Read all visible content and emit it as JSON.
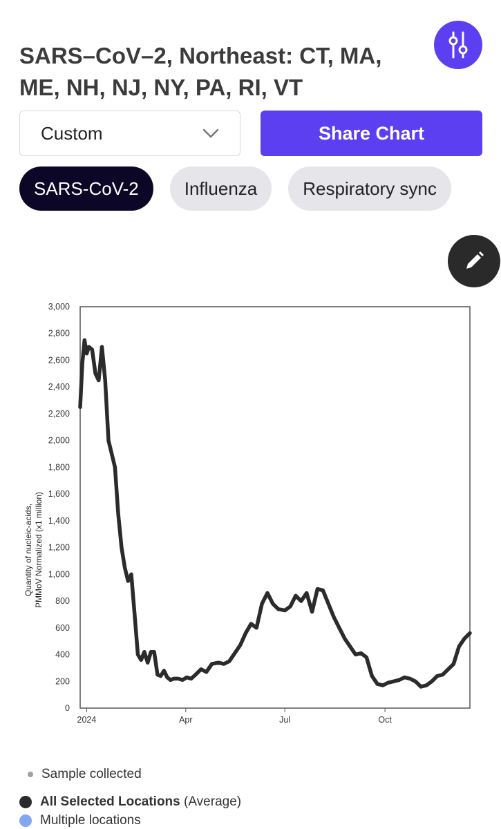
{
  "title": "SARS–CoV–2, Northeast: CT, MA, ME, NH, NJ, NY, PA, RI, VT",
  "controls": {
    "dropdown_value": "Custom",
    "share_label": "Share Chart",
    "settings_icon": "sliders-icon",
    "edit_icon": "pencil-icon"
  },
  "tabs": [
    {
      "label": "SARS-CoV-2",
      "active": true
    },
    {
      "label": "Influenza",
      "active": false
    },
    {
      "label": "Respiratory sync",
      "active": false
    }
  ],
  "colors": {
    "accent": "#5b3ff0",
    "line": "#2b2b2b",
    "active_tab": "#0c0726"
  },
  "chart_data": {
    "type": "line",
    "ylabel_line1": "Quantity of nucleic-acids,",
    "ylabel_line2": "PMMoV Normalized (x1 million)",
    "ylim": [
      0,
      3000
    ],
    "y_ticks": [
      "0",
      "200",
      "400",
      "600",
      "800",
      "1,000",
      "1,200",
      "1,400",
      "1,600",
      "1,800",
      "2,000",
      "2,200",
      "2,400",
      "2,600",
      "2,800",
      "3,000"
    ],
    "x_ticks": [
      "2024",
      "Apr",
      "Jul",
      "Oct"
    ],
    "x_tick_dates": [
      "2024-01-01",
      "2024-04-01",
      "2024-07-01",
      "2024-10-01"
    ],
    "xlim": [
      "2023-12-26",
      "2024-12-18"
    ],
    "series": [
      {
        "x": [
          "2023-12-26",
          "2023-12-28",
          "2023-12-30",
          "2024-01-01",
          "2024-01-03",
          "2024-01-06",
          "2024-01-09",
          "2024-01-12",
          "2024-01-15",
          "2024-01-18",
          "2024-01-21",
          "2024-01-24",
          "2024-01-27",
          "2024-01-30",
          "2024-02-02",
          "2024-02-05",
          "2024-02-08",
          "2024-02-11",
          "2024-02-14",
          "2024-02-17",
          "2024-02-20",
          "2024-02-23",
          "2024-02-26",
          "2024-02-29",
          "2024-03-03",
          "2024-03-06",
          "2024-03-09",
          "2024-03-12",
          "2024-03-15",
          "2024-03-18",
          "2024-03-21",
          "2024-03-25",
          "2024-03-29",
          "2024-04-02",
          "2024-04-06",
          "2024-04-10",
          "2024-04-15",
          "2024-04-20",
          "2024-04-25",
          "2024-05-01",
          "2024-05-06",
          "2024-05-11",
          "2024-05-16",
          "2024-05-21",
          "2024-05-26",
          "2024-05-31",
          "2024-06-05",
          "2024-06-10",
          "2024-06-15",
          "2024-06-20",
          "2024-06-25",
          "2024-07-01",
          "2024-07-06",
          "2024-07-11",
          "2024-07-16",
          "2024-07-21",
          "2024-07-26",
          "2024-07-31",
          "2024-08-05",
          "2024-08-10",
          "2024-08-15",
          "2024-08-20",
          "2024-08-25",
          "2024-08-30",
          "2024-09-04",
          "2024-09-09",
          "2024-09-14",
          "2024-09-19",
          "2024-09-24",
          "2024-09-29",
          "2024-10-04",
          "2024-10-09",
          "2024-10-14",
          "2024-10-19",
          "2024-10-24",
          "2024-10-29",
          "2024-11-03",
          "2024-11-08",
          "2024-11-13",
          "2024-11-18",
          "2024-11-23",
          "2024-11-28",
          "2024-12-03",
          "2024-12-08",
          "2024-12-13",
          "2024-12-18"
        ],
        "y": [
          2250,
          2580,
          2750,
          2650,
          2700,
          2680,
          2500,
          2450,
          2700,
          2450,
          2000,
          1900,
          1800,
          1450,
          1200,
          1050,
          950,
          1000,
          700,
          400,
          360,
          420,
          340,
          420,
          420,
          250,
          240,
          280,
          230,
          210,
          220,
          220,
          210,
          230,
          220,
          250,
          290,
          270,
          330,
          340,
          330,
          350,
          410,
          470,
          560,
          630,
          600,
          780,
          860,
          780,
          740,
          730,
          760,
          840,
          800,
          860,
          720,
          890,
          880,
          780,
          680,
          600,
          520,
          460,
          400,
          410,
          380,
          240,
          180,
          170,
          190,
          200,
          210,
          230,
          220,
          200,
          160,
          170,
          200,
          240,
          250,
          290,
          330,
          460,
          520,
          560
        ]
      }
    ]
  },
  "legend": {
    "sample_label": "Sample collected",
    "all_label": "All Selected Locations",
    "all_suffix": "(Average)",
    "multi_label": "Multiple locations"
  }
}
